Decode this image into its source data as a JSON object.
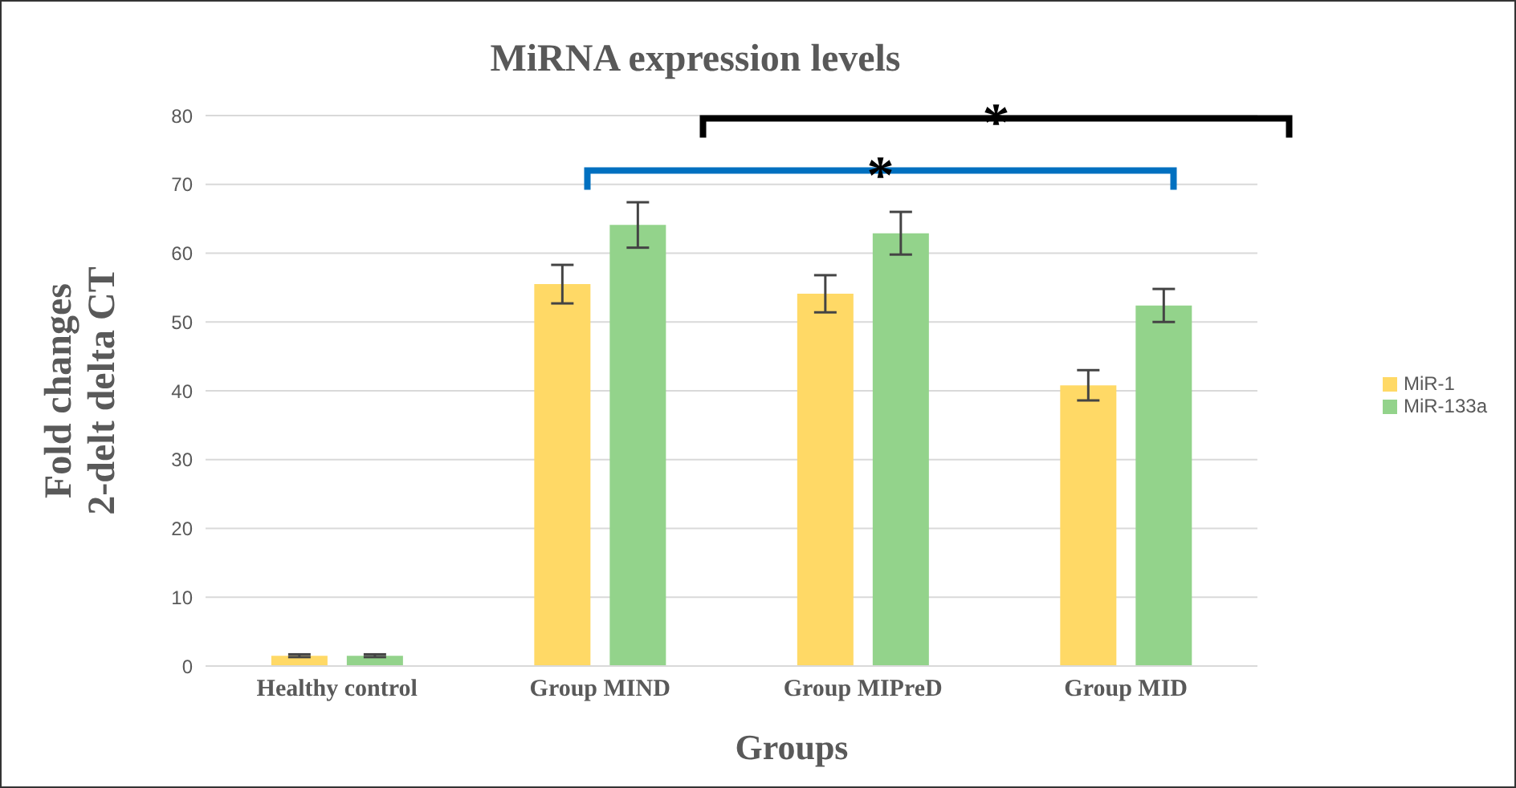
{
  "chart_data": {
    "type": "bar",
    "title": "MiRNA expression levels",
    "xlabel": "Groups",
    "ylabel": "Fold changes\n2-delt delta CT",
    "categories": [
      "Healthy control",
      "Group MIND",
      "Group MIPreD",
      "Group MID"
    ],
    "series": [
      {
        "name": "MiR-1",
        "color": "#ffd966",
        "values": [
          1.5,
          55.5,
          54.1,
          40.8
        ],
        "errors": [
          0.2,
          2.8,
          2.7,
          2.2
        ]
      },
      {
        "name": "MiR-133a",
        "color": "#93d38b",
        "values": [
          1.5,
          64.1,
          62.9,
          52.4
        ],
        "errors": [
          0.2,
          3.3,
          3.1,
          2.4
        ]
      }
    ],
    "ylim": [
      0,
      80
    ],
    "yticks": [
      0,
      10,
      20,
      30,
      40,
      50,
      60,
      70,
      80
    ],
    "grid": "y",
    "legend": "right",
    "annotations": [
      "*",
      "*"
    ]
  }
}
